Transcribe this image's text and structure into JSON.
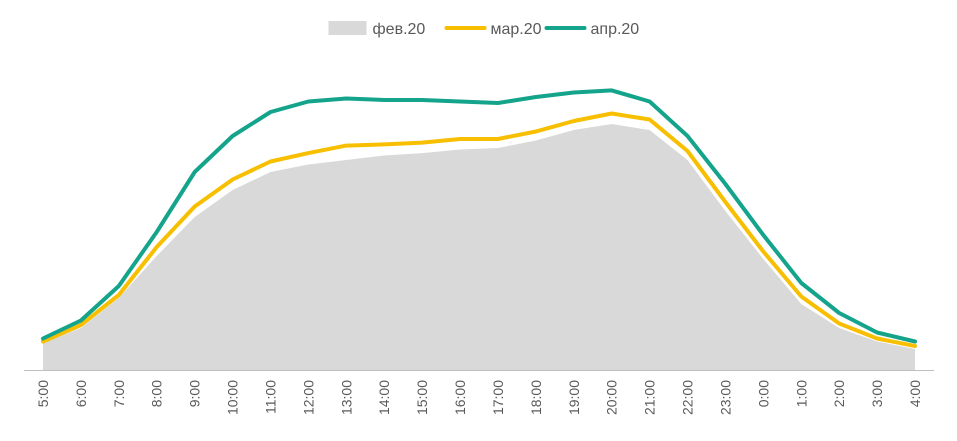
{
  "colors": {
    "feb": "#d9d9d9",
    "mar": "#f7bf00",
    "apr": "#14a38b",
    "axis": "#bfbfbf",
    "text": "#595959"
  },
  "chart_data": {
    "type": "area",
    "categories": [
      "5:00",
      "6:00",
      "7:00",
      "8:00",
      "9:00",
      "10:00",
      "11:00",
      "12:00",
      "13:00",
      "14:00",
      "15:00",
      "16:00",
      "17:00",
      "18:00",
      "19:00",
      "20:00",
      "21:00",
      "22:00",
      "23:00",
      "0:00",
      "1:00",
      "2:00",
      "3:00",
      "4:00"
    ],
    "ylim": [
      0,
      100
    ],
    "legend_position": "top",
    "grid": false,
    "series": [
      {
        "name": "фев.20",
        "type": "area",
        "color": "#d9d9d9",
        "values": [
          9,
          14,
          24,
          38,
          51,
          60,
          66,
          68.5,
          70,
          71.5,
          72.3,
          73.5,
          74,
          76.5,
          80,
          82,
          80,
          70,
          53,
          37,
          22,
          14,
          9.5,
          7
        ]
      },
      {
        "name": "мар.20",
        "type": "line",
        "color": "#f7bf00",
        "values": [
          9.5,
          15,
          25,
          41,
          54.5,
          63.5,
          69.5,
          72.3,
          74.8,
          75.2,
          75.8,
          77,
          77,
          79.5,
          83,
          85.5,
          83.5,
          73,
          56,
          39.5,
          24.5,
          15.5,
          10.5,
          8
        ]
      },
      {
        "name": "апр.20",
        "type": "line",
        "color": "#14a38b",
        "values": [
          10.5,
          16.5,
          28,
          46,
          66,
          78,
          86,
          89.5,
          90.5,
          90,
          90,
          89.5,
          89,
          91,
          92.5,
          93.2,
          89.5,
          78,
          62,
          45,
          29,
          19,
          12.5,
          9.5
        ]
      }
    ]
  }
}
